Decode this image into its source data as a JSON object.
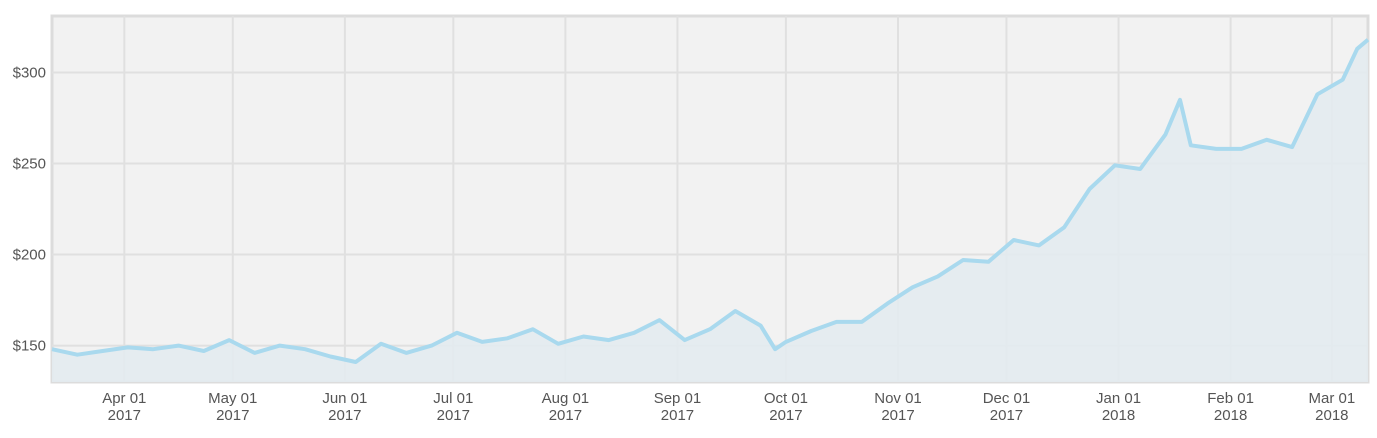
{
  "chart_data": {
    "type": "area-line",
    "x": [
      "2017-03-12",
      "2017-03-19",
      "2017-03-26",
      "2017-04-02",
      "2017-04-09",
      "2017-04-16",
      "2017-04-23",
      "2017-04-30",
      "2017-05-07",
      "2017-05-14",
      "2017-05-21",
      "2017-05-28",
      "2017-06-04",
      "2017-06-11",
      "2017-06-18",
      "2017-06-25",
      "2017-07-02",
      "2017-07-09",
      "2017-07-16",
      "2017-07-23",
      "2017-07-30",
      "2017-08-06",
      "2017-08-13",
      "2017-08-20",
      "2017-08-27",
      "2017-09-03",
      "2017-09-10",
      "2017-09-17",
      "2017-09-24",
      "2017-09-28",
      "2017-10-01",
      "2017-10-08",
      "2017-10-15",
      "2017-10-22",
      "2017-10-29",
      "2017-11-05",
      "2017-11-12",
      "2017-11-19",
      "2017-11-26",
      "2017-12-03",
      "2017-12-10",
      "2017-12-17",
      "2017-12-24",
      "2017-12-31",
      "2018-01-07",
      "2018-01-14",
      "2018-01-18",
      "2018-01-21",
      "2018-01-28",
      "2018-02-04",
      "2018-02-11",
      "2018-02-18",
      "2018-02-25",
      "2018-03-04",
      "2018-03-08",
      "2018-03-11"
    ],
    "series": [
      {
        "color": "#a9d9ee",
        "fill": "#e3ebef",
        "values": [
          148,
          145,
          147,
          149,
          148,
          150,
          147,
          153,
          146,
          150,
          148,
          144,
          141,
          151,
          146,
          150,
          157,
          152,
          154,
          159,
          151,
          155,
          153,
          157,
          164,
          153,
          159,
          169,
          161,
          148,
          152,
          158,
          163,
          163,
          173,
          182,
          188,
          197,
          196,
          208,
          205,
          215,
          236,
          249,
          247,
          266,
          285,
          260,
          258,
          258,
          263,
          259,
          288,
          296,
          313,
          318
        ]
      }
    ],
    "xlim": [
      "2017-03-12",
      "2018-03-11"
    ],
    "xticks": [
      {
        "value": "2017-04-01",
        "label": [
          "Apr 01",
          "2017"
        ]
      },
      {
        "value": "2017-05-01",
        "label": [
          "May 01",
          "2017"
        ]
      },
      {
        "value": "2017-06-01",
        "label": [
          "Jun 01",
          "2017"
        ]
      },
      {
        "value": "2017-07-01",
        "label": [
          "Jul 01",
          "2017"
        ]
      },
      {
        "value": "2017-08-01",
        "label": [
          "Aug 01",
          "2017"
        ]
      },
      {
        "value": "2017-09-01",
        "label": [
          "Sep 01",
          "2017"
        ]
      },
      {
        "value": "2017-10-01",
        "label": [
          "Oct 01",
          "2017"
        ]
      },
      {
        "value": "2017-11-01",
        "label": [
          "Nov 01",
          "2017"
        ]
      },
      {
        "value": "2017-12-01",
        "label": [
          "Dec 01",
          "2017"
        ]
      },
      {
        "value": "2018-01-01",
        "label": [
          "Jan 01",
          "2018"
        ]
      },
      {
        "value": "2018-02-01",
        "label": [
          "Feb 01",
          "2018"
        ]
      },
      {
        "value": "2018-03-01",
        "label": [
          "Mar 01",
          "2018"
        ]
      }
    ],
    "ylim": [
      130,
      331
    ],
    "yticks": [
      {
        "value": 150,
        "label": "$150"
      },
      {
        "value": 200,
        "label": "$200"
      },
      {
        "value": 250,
        "label": "$250"
      },
      {
        "value": 300,
        "label": "$300"
      }
    ],
    "grid": true
  }
}
